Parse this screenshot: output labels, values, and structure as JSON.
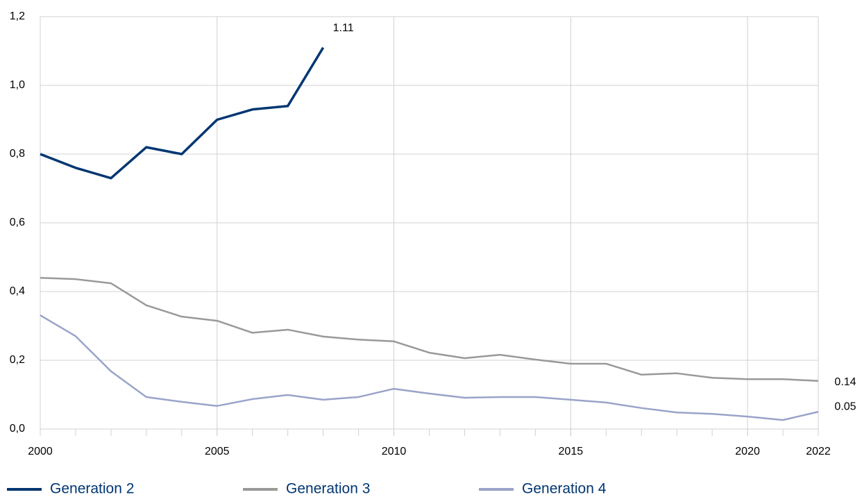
{
  "chart_data": {
    "type": "line",
    "x": [
      2000,
      2001,
      2002,
      2003,
      2004,
      2005,
      2006,
      2007,
      2008,
      2009,
      2010,
      2011,
      2012,
      2013,
      2014,
      2015,
      2016,
      2017,
      2018,
      2019,
      2020,
      2021,
      2022
    ],
    "series": [
      {
        "name": "Generation 2",
        "color": "#003671",
        "values": [
          0.8,
          0.76,
          0.73,
          0.82,
          0.8,
          0.9,
          0.93,
          0.94,
          1.11,
          null,
          null,
          null,
          null,
          null,
          null,
          null,
          null,
          null,
          null,
          null,
          null,
          null,
          null
        ]
      },
      {
        "name": "Generation 3",
        "color": "#999999",
        "values": [
          0.44,
          0.436,
          0.424,
          0.36,
          0.327,
          0.315,
          0.28,
          0.289,
          0.269,
          0.26,
          0.255,
          0.222,
          0.206,
          0.216,
          0.202,
          0.19,
          0.19,
          0.158,
          0.162,
          0.149,
          0.145,
          0.145,
          0.14
        ]
      },
      {
        "name": "Generation 4",
        "color": "#9aa3c9",
        "values": [
          0.331,
          0.27,
          0.168,
          0.093,
          0.079,
          0.067,
          0.087,
          0.099,
          0.085,
          0.093,
          0.117,
          0.103,
          0.091,
          0.093,
          0.093,
          0.085,
          0.077,
          0.061,
          0.048,
          0.044,
          0.036,
          0.026,
          0.05
        ]
      }
    ],
    "xlim": [
      2000,
      2022
    ],
    "xticks": [
      2000,
      2005,
      2010,
      2015,
      2020,
      2022
    ],
    "ylim": [
      0,
      1.2
    ],
    "yticks": [
      {
        "value": 0,
        "label": "0,0"
      },
      {
        "value": 0.2,
        "label": "0,2"
      },
      {
        "value": 0.4,
        "label": "0,4"
      },
      {
        "value": 0.6,
        "label": "0,6"
      },
      {
        "value": 0.8,
        "label": "0,8"
      },
      {
        "value": 1.0,
        "label": "1,0"
      },
      {
        "value": 1.2,
        "label": "1,2"
      }
    ],
    "grid": true,
    "legend": "bottom"
  }
}
